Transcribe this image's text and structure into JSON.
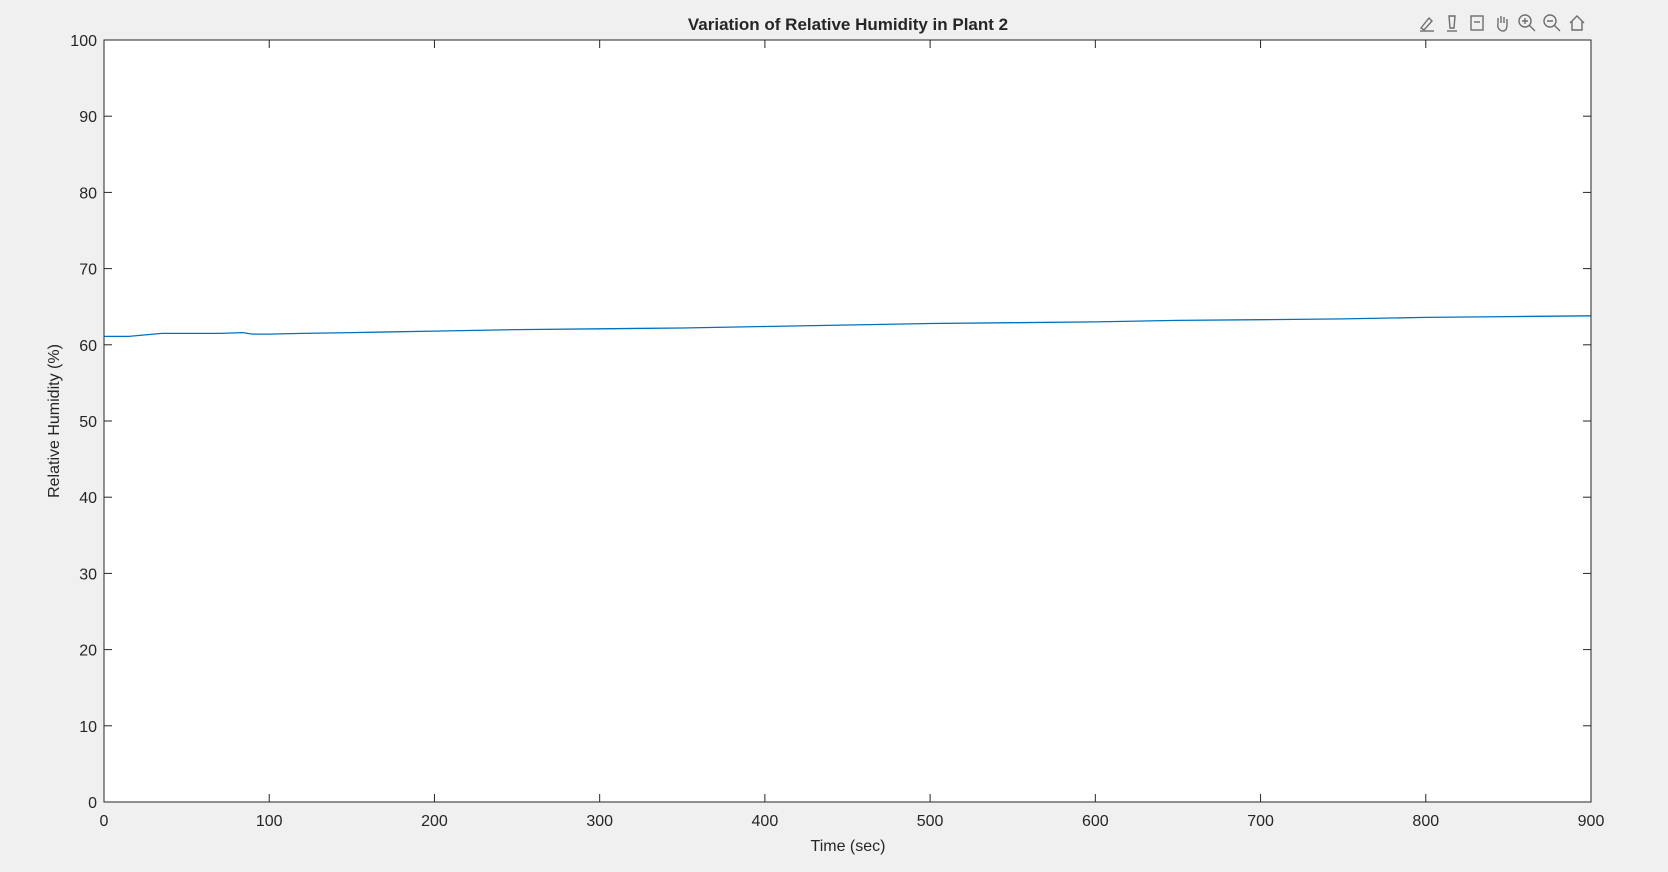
{
  "chart_data": {
    "type": "line",
    "title": "Variation of Relative Humidity in Plant 2",
    "xlabel": "Time (sec)",
    "ylabel": "Relative Humidity (%)",
    "xlim": [
      0,
      900
    ],
    "ylim": [
      0,
      100
    ],
    "xticks": [
      0,
      100,
      200,
      300,
      400,
      500,
      600,
      700,
      800,
      900
    ],
    "yticks": [
      0,
      10,
      20,
      30,
      40,
      50,
      60,
      70,
      80,
      90,
      100
    ],
    "grid": false,
    "legend": "none",
    "series": [
      {
        "color": "#0072bd",
        "x": [
          0,
          15,
          25,
          35,
          50,
          70,
          84,
          90,
          100,
          120,
          150,
          200,
          250,
          300,
          350,
          400,
          450,
          500,
          550,
          600,
          650,
          700,
          750,
          800,
          850,
          900
        ],
        "y": [
          61.1,
          61.1,
          61.3,
          61.5,
          61.5,
          61.5,
          61.6,
          61.4,
          61.4,
          61.5,
          61.6,
          61.8,
          62.0,
          62.1,
          62.2,
          62.4,
          62.6,
          62.8,
          62.9,
          63.0,
          63.2,
          63.3,
          63.4,
          63.6,
          63.7,
          63.8
        ]
      }
    ]
  },
  "toolbar": {
    "icons": [
      "brush-icon",
      "data-tips-icon",
      "datatip-icon",
      "pan-icon",
      "zoom-in-icon",
      "zoom-out-icon",
      "home-icon"
    ]
  }
}
